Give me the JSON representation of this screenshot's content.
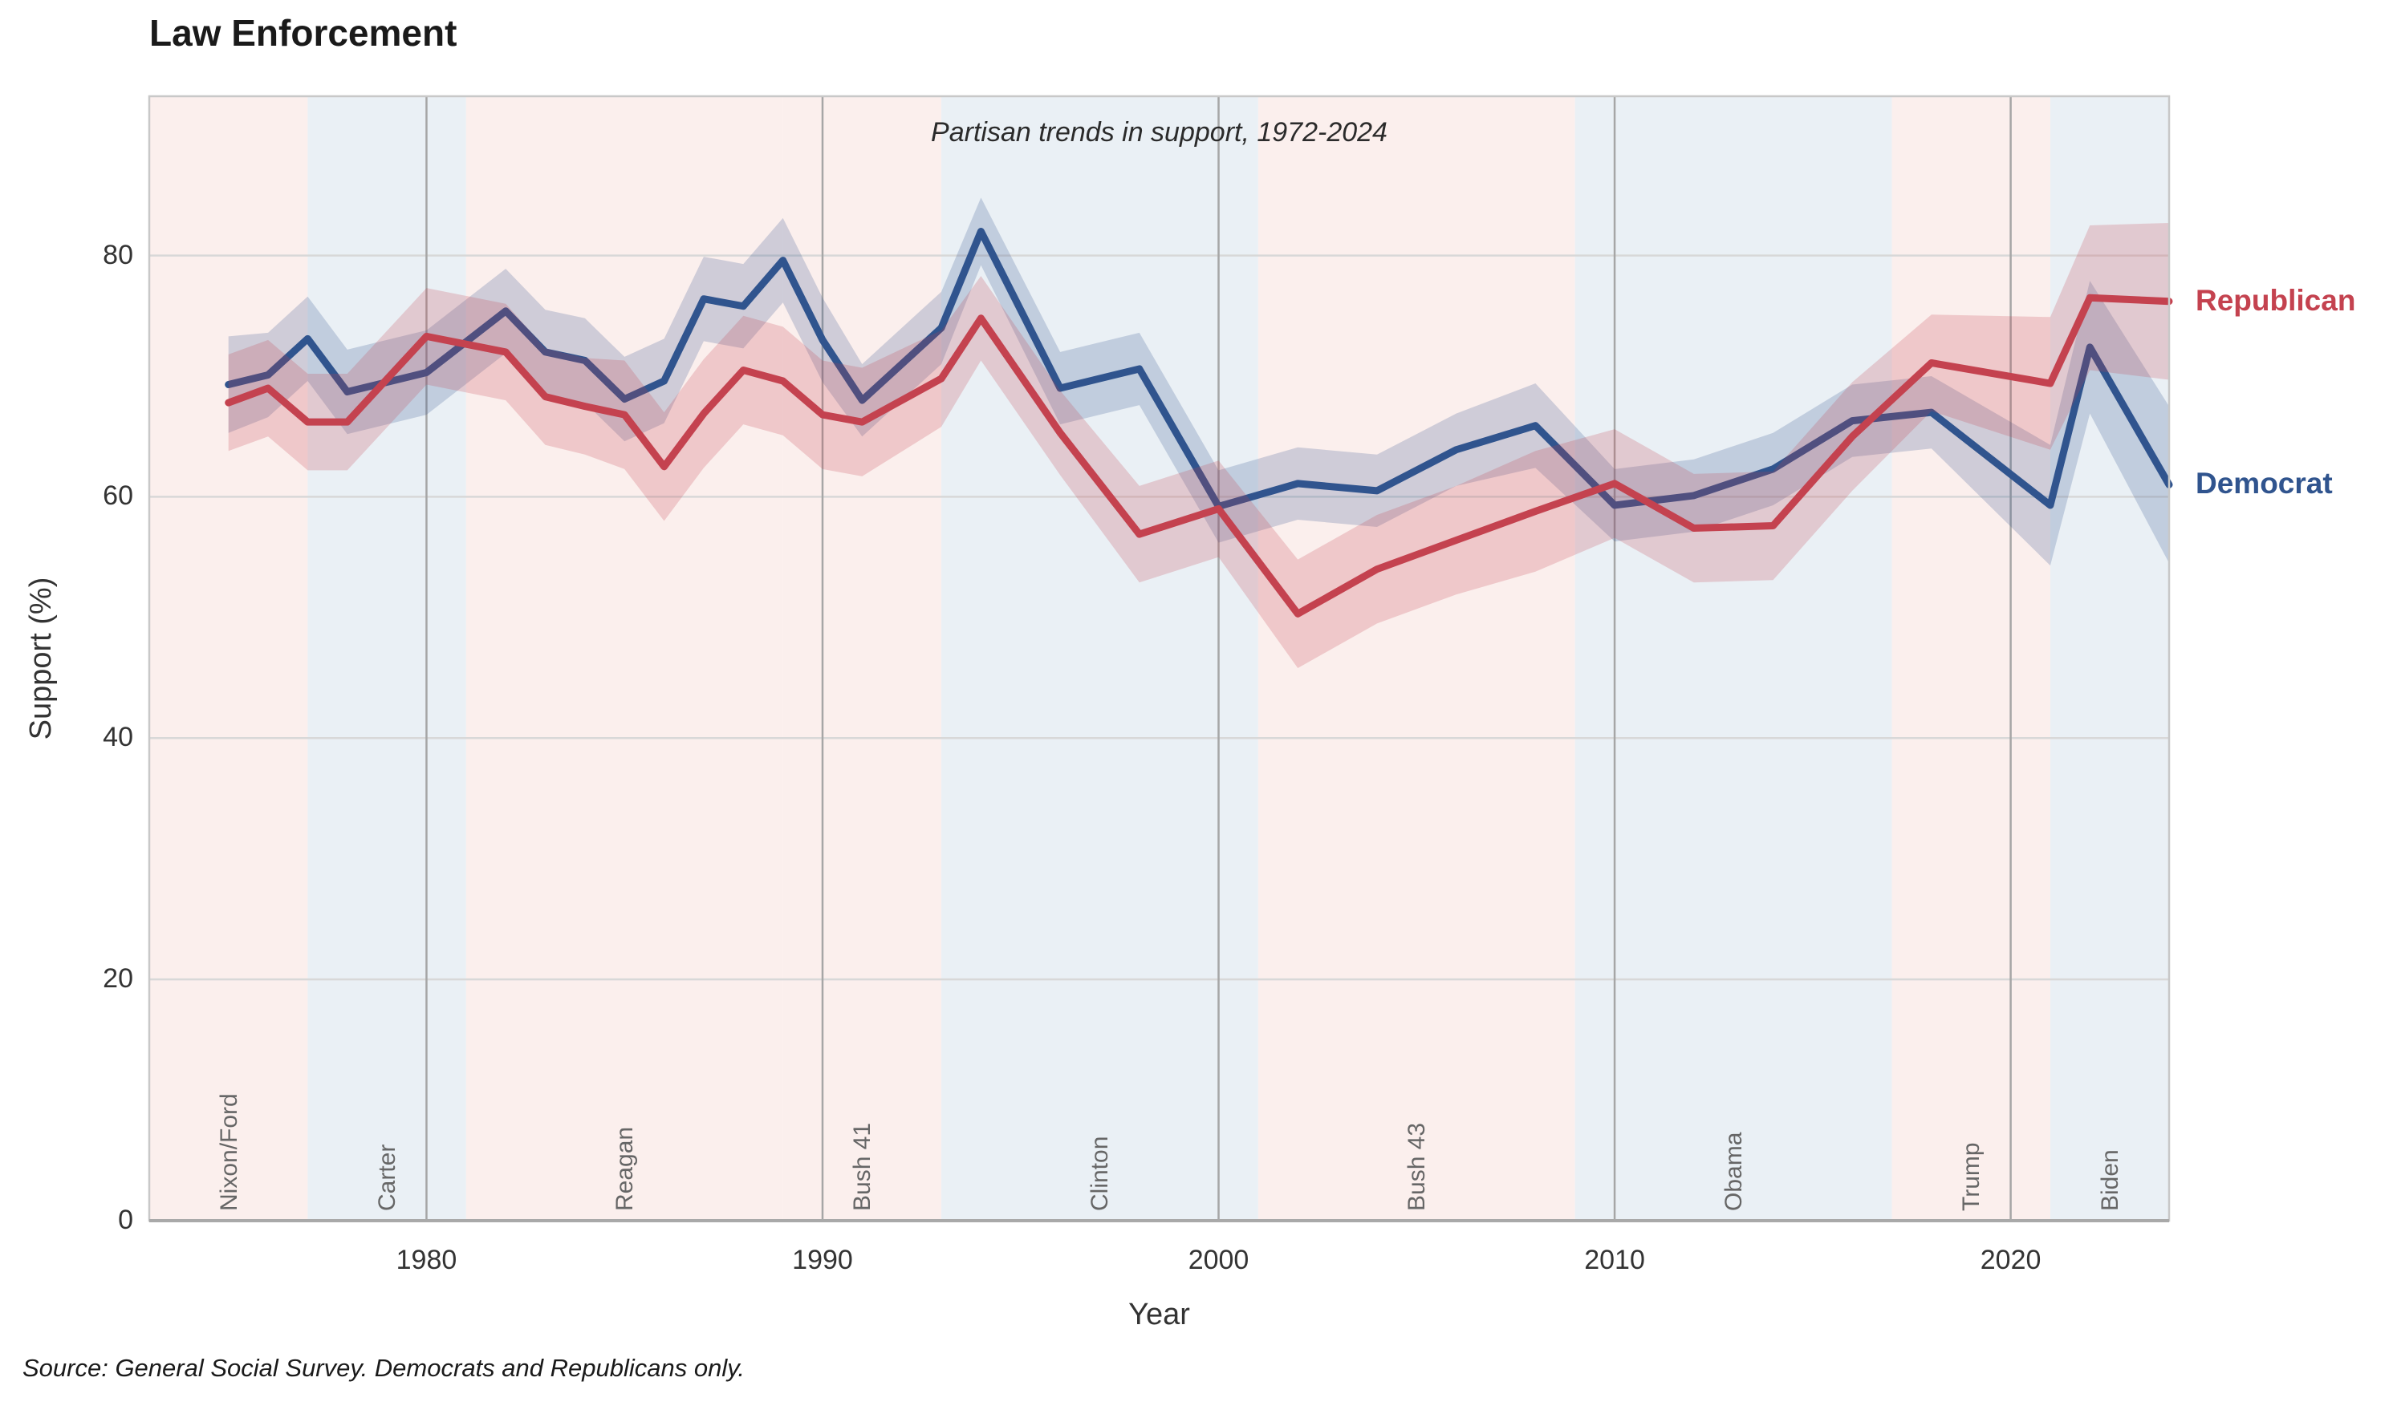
{
  "title": "Law Enforcement",
  "subtitle": "Partisan trends in support, 1972-2024",
  "xlabel": "Year",
  "ylabel": "Support (%)",
  "source_note": "Source: General Social Survey. Democrats and Republicans only.",
  "colors": {
    "democrat_line": "#30548e",
    "republican_line": "#c4424f",
    "republican_president_band": "#fbefed",
    "democrat_president_band": "#eaf0f5",
    "horizontal_grid": "#d8d8d8",
    "vertical_grid": "#a6a6a6",
    "spine": "#c8c8c8",
    "bottom_spine": "#a9a9a9"
  },
  "chart_data": {
    "type": "line",
    "title": "Law Enforcement",
    "subtitle": "Partisan trends in support, 1972-2024",
    "xlabel": "Year",
    "ylabel": "Support (%)",
    "xlim": [
      1973,
      2024
    ],
    "ylim": [
      0,
      93.2
    ],
    "xticks": [
      1980,
      1990,
      2000,
      2010,
      2020
    ],
    "yticks": [
      0,
      20,
      40,
      60,
      80
    ],
    "grid": true,
    "legend_position": "right-of-plot-at-line-ends",
    "x": [
      1975,
      1976,
      1977,
      1978,
      1980,
      1982,
      1983,
      1984,
      1985,
      1986,
      1987,
      1988,
      1989,
      1990,
      1991,
      1993,
      1994,
      1996,
      1998,
      2000,
      2002,
      2004,
      2006,
      2008,
      2010,
      2012,
      2014,
      2016,
      2018,
      2021,
      2022,
      2024
    ],
    "series": [
      {
        "name": "Democrat",
        "color": "#30548e",
        "values": [
          69.3,
          70.1,
          73.1,
          68.7,
          70.3,
          75.4,
          72.0,
          71.3,
          68.1,
          69.6,
          76.4,
          75.8,
          79.6,
          73.0,
          68.0,
          74.0,
          82.0,
          69.0,
          70.6,
          59.2,
          61.1,
          60.5,
          63.9,
          65.9,
          59.3,
          60.1,
          62.3,
          66.3,
          67.0,
          59.3,
          72.4,
          61.0
        ],
        "ci": [
          4,
          3.5,
          3.5,
          3.5,
          3.5,
          3.5,
          3.5,
          3.5,
          3.5,
          3.5,
          3.5,
          3.5,
          3.5,
          3.5,
          3,
          3,
          2.8,
          3,
          3,
          3,
          3,
          3,
          3,
          3.5,
          3,
          3,
          3,
          3,
          3,
          5,
          5.5,
          6.5
        ]
      },
      {
        "name": "Republican",
        "color": "#c4424f",
        "values": [
          67.8,
          69.0,
          66.2,
          66.2,
          73.3,
          72.0,
          68.3,
          67.5,
          66.8,
          62.5,
          66.9,
          70.5,
          69.6,
          66.8,
          66.2,
          69.8,
          74.8,
          65.3,
          56.9,
          59.0,
          50.3,
          54.0,
          56.4,
          58.8,
          61.1,
          57.4,
          57.6,
          65.0,
          71.1,
          69.4,
          76.5,
          76.2
        ],
        "ci": [
          4,
          4,
          4,
          4,
          4,
          4,
          4,
          4,
          4.5,
          4.5,
          4.5,
          4.5,
          4.5,
          4.5,
          4.5,
          4,
          3.5,
          3.5,
          4,
          4,
          4.5,
          4.5,
          4.5,
          5,
          4.5,
          4.5,
          4.5,
          4.5,
          4,
          5.5,
          6,
          6.5
        ]
      }
    ],
    "president_bands": [
      {
        "label": "Nixon/Ford",
        "party": "R",
        "start": 1973,
        "end": 1977
      },
      {
        "label": "Carter",
        "party": "D",
        "start": 1977,
        "end": 1981
      },
      {
        "label": "Reagan",
        "party": "R",
        "start": 1981,
        "end": 1989
      },
      {
        "label": "Bush 41",
        "party": "R",
        "start": 1989,
        "end": 1993
      },
      {
        "label": "Clinton",
        "party": "D",
        "start": 1993,
        "end": 2001
      },
      {
        "label": "Bush 43",
        "party": "R",
        "start": 2001,
        "end": 2009
      },
      {
        "label": "Obama",
        "party": "D",
        "start": 2009,
        "end": 2017
      },
      {
        "label": "Trump",
        "party": "R",
        "start": 2017,
        "end": 2021
      },
      {
        "label": "Biden",
        "party": "D",
        "start": 2021,
        "end": 2024
      }
    ]
  }
}
